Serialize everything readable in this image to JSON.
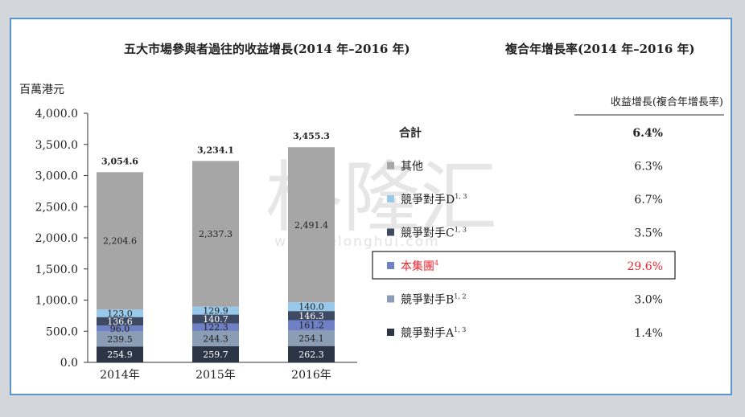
{
  "titles": {
    "main": "五大市場參與者過往的收益增長(2014 年–2016 年)",
    "cagr": "複合年增長率(2014 年–2016 年)",
    "unit": "百萬港元",
    "table_header": "收益增長(複合年增長率)"
  },
  "watermark": {
    "text": "格隆汇",
    "url": "www.gelonghui.com"
  },
  "colors": {
    "competitorA": "#2c3546",
    "competitorB": "#8b9cb5",
    "group": "#6f80c4",
    "competitorC": "#3e4a63",
    "competitorD": "#98c8ea",
    "others": "#a6a6a6",
    "highlight": "#e8262f"
  },
  "chart_data": {
    "type": "bar",
    "stacked": true,
    "categories": [
      "2014年",
      "2015年",
      "2016年"
    ],
    "ylim": [
      0,
      4000
    ],
    "yticks": [
      "0.0",
      "500.0",
      "1,000.0",
      "1,500.0",
      "2,000.0",
      "2,500.0",
      "3,000.0",
      "3,500.0",
      "4,000.0"
    ],
    "ylabel": "百萬港元",
    "series": [
      {
        "name": "競爭對手A",
        "sup": "1, 3",
        "color_key": "competitorA",
        "values": [
          254.9,
          259.7,
          262.3
        ],
        "labels": [
          "254.9",
          "259.7",
          "262.3"
        ],
        "cagr": "1.4%"
      },
      {
        "name": "競爭對手B",
        "sup": "1, 2",
        "color_key": "competitorB",
        "values": [
          239.5,
          244.3,
          254.1
        ],
        "labels": [
          "239.5",
          "244.3",
          "254.1"
        ],
        "cagr": "3.0%"
      },
      {
        "name": "本集團",
        "sup": "4",
        "color_key": "group",
        "values": [
          96.0,
          122.3,
          161.2
        ],
        "labels": [
          "96.0",
          "122.3",
          "161.2"
        ],
        "cagr": "29.6%",
        "highlight": true
      },
      {
        "name": "競爭對手C",
        "sup": "1, 3",
        "color_key": "competitorC",
        "values": [
          136.6,
          140.7,
          146.3
        ],
        "labels": [
          "136.6",
          "140.7",
          "146.3"
        ],
        "cagr": "3.5%"
      },
      {
        "name": "競爭對手D",
        "sup": "1, 3",
        "color_key": "competitorD",
        "values": [
          123.0,
          129.9,
          140.0
        ],
        "labels": [
          "123.0",
          "129.9",
          "140.0"
        ],
        "cagr": "6.7%"
      },
      {
        "name": "其他",
        "sup": "",
        "color_key": "others",
        "values": [
          2204.6,
          2337.3,
          2491.4
        ],
        "labels": [
          "2,204.6",
          "2,337.3",
          "2,491.4"
        ],
        "cagr": "6.3%"
      }
    ],
    "totals": [
      "3,054.6",
      "3,234.1",
      "3,455.3"
    ],
    "total_row": {
      "name": "合計",
      "cagr": "6.4%"
    },
    "legend_order": [
      "其他",
      "競爭對手D",
      "競爭對手C",
      "本集團",
      "競爭對手B",
      "競爭對手A"
    ]
  }
}
